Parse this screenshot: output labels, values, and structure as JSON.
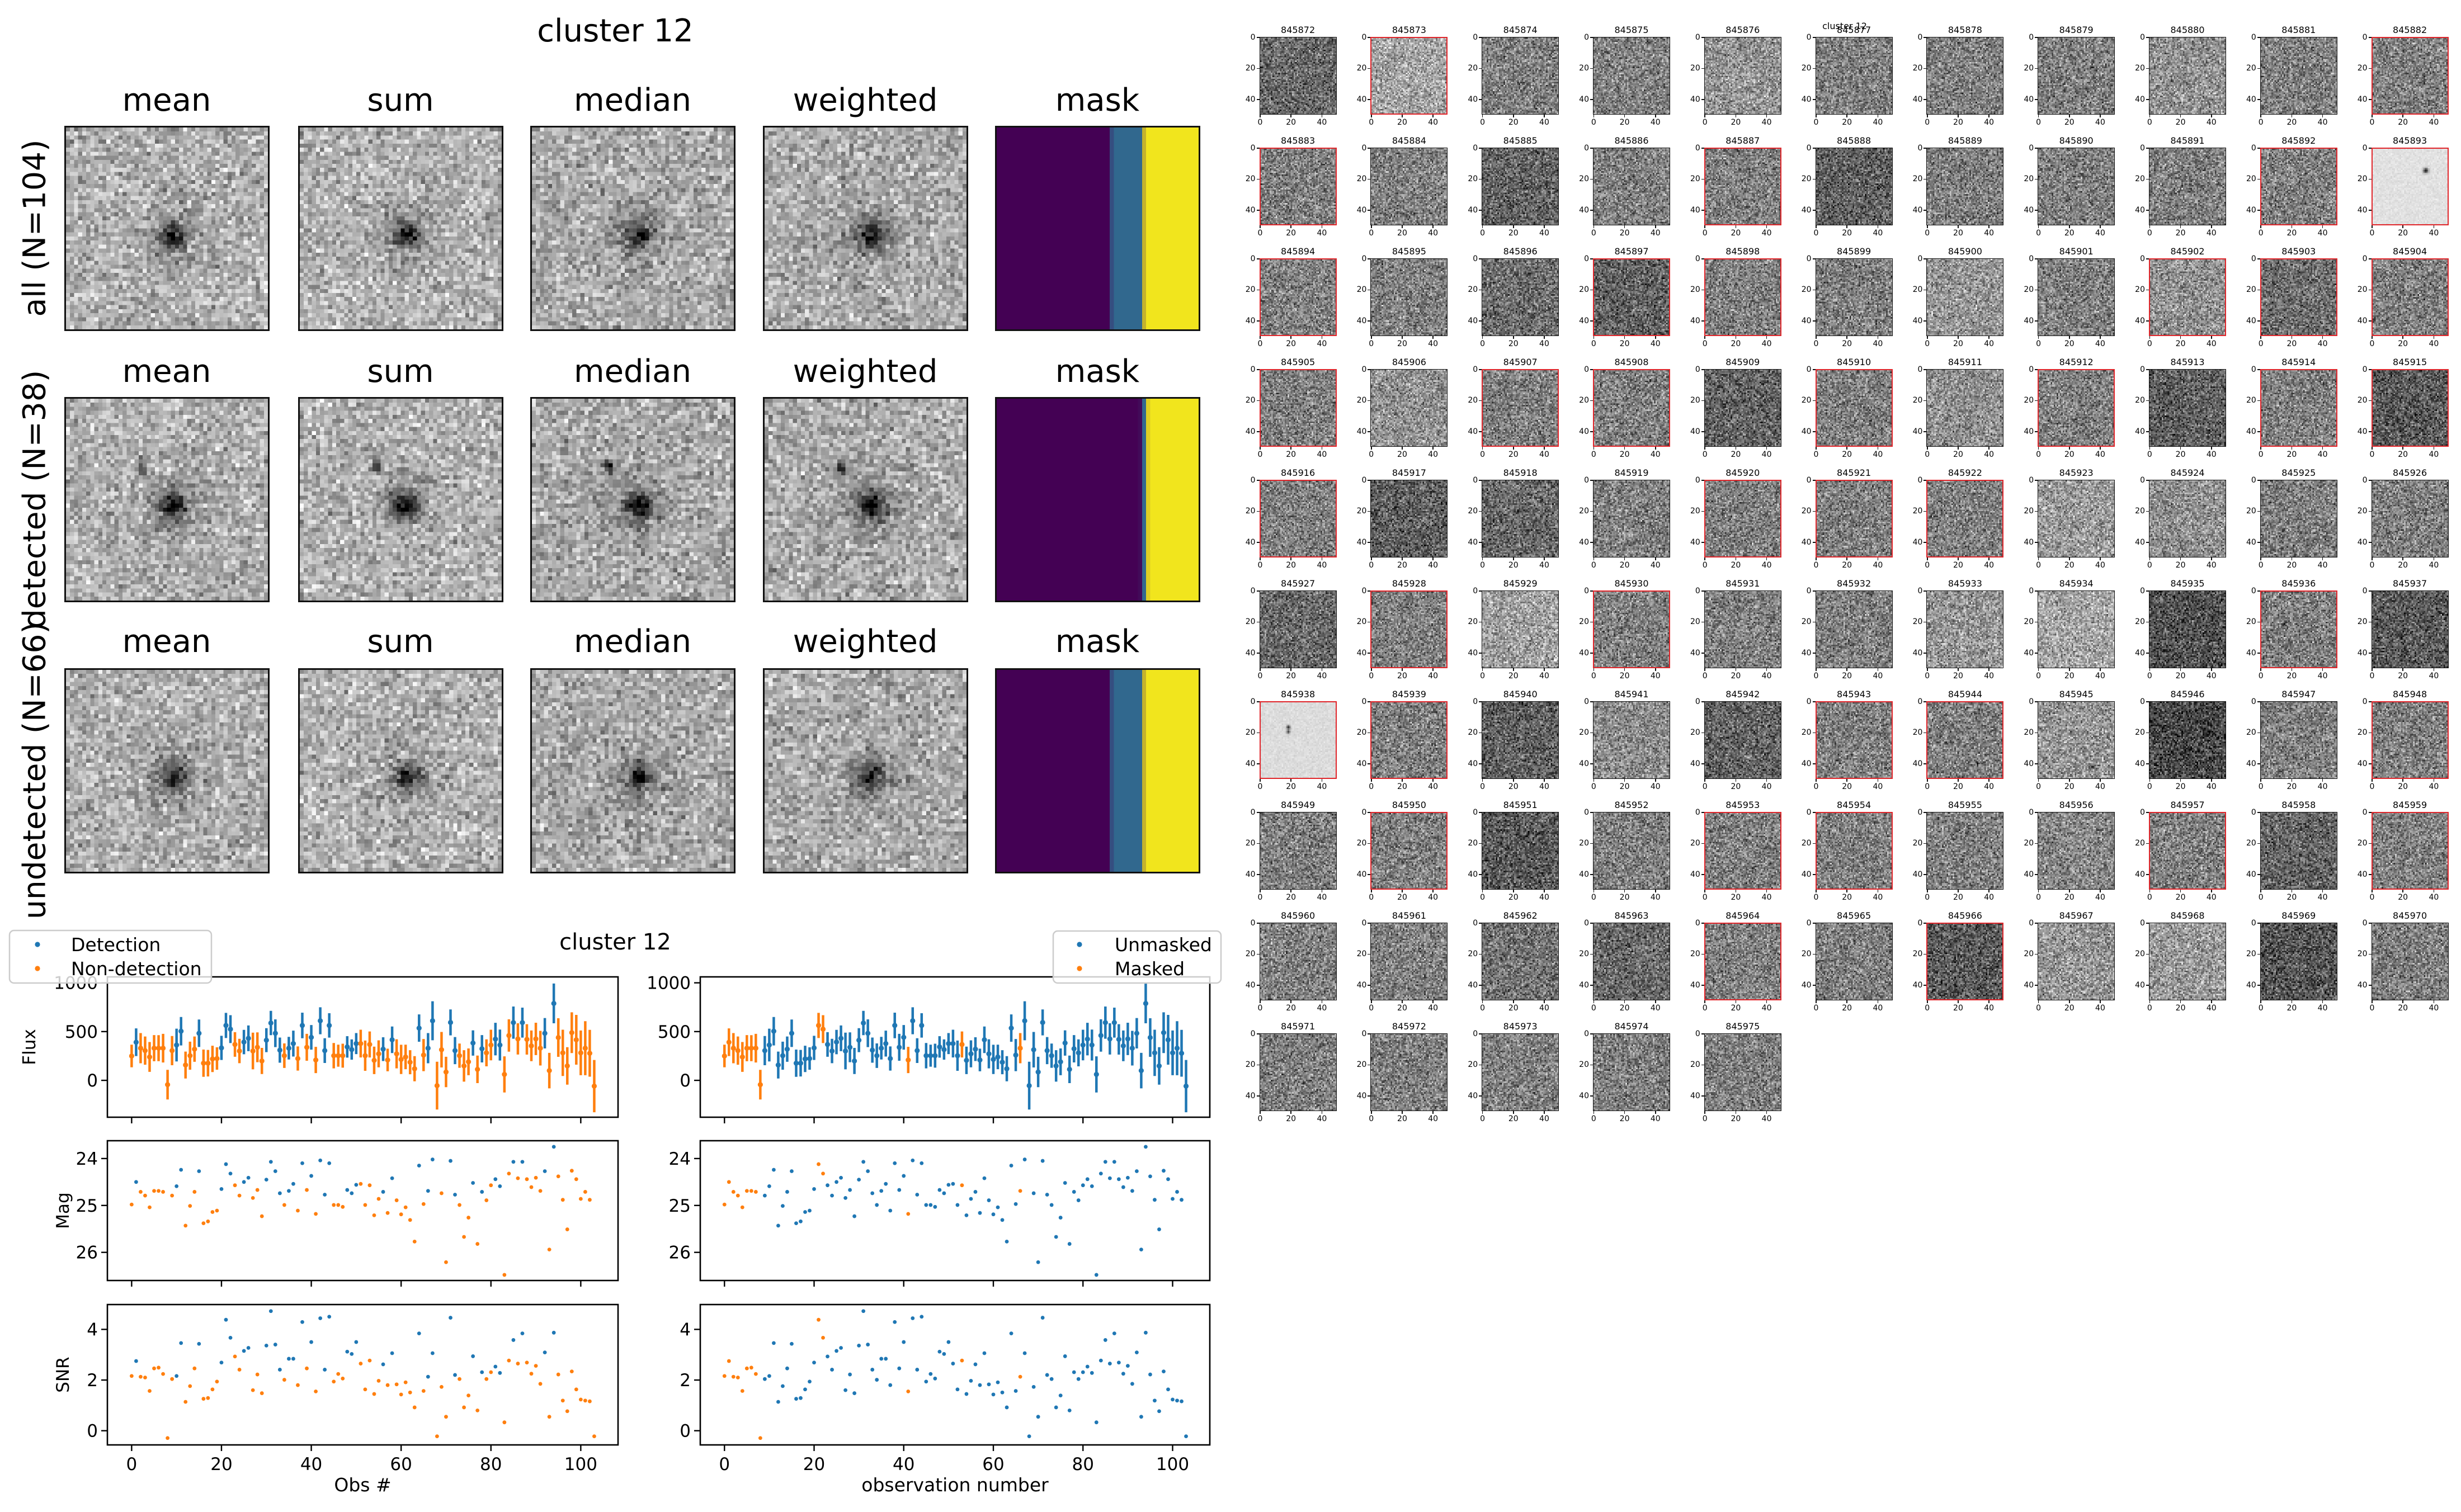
{
  "stack_figure": {
    "title": "cluster 12",
    "columns": [
      "mean",
      "sum",
      "median",
      "weighted",
      "mask"
    ],
    "rows": [
      {
        "label": "all (N=104)"
      },
      {
        "label": "detected (N=38)"
      },
      {
        "label": "undetected (N=66)"
      }
    ],
    "mask_colors": [
      "#440154",
      "#31688e",
      "#f1e51d"
    ]
  },
  "thumbnail_grid": {
    "title": "cluster 12",
    "tick_labels": [
      "0",
      "20",
      "40"
    ],
    "flag_color": "#e0262b",
    "tiles": [
      {
        "id": "845872",
        "flagged": false
      },
      {
        "id": "845873",
        "flagged": true
      },
      {
        "id": "845874",
        "flagged": false
      },
      {
        "id": "845875",
        "flagged": false
      },
      {
        "id": "845876",
        "flagged": false
      },
      {
        "id": "845877",
        "flagged": false
      },
      {
        "id": "845878",
        "flagged": false
      },
      {
        "id": "845879",
        "flagged": false
      },
      {
        "id": "845880",
        "flagged": false
      },
      {
        "id": "845881",
        "flagged": false
      },
      {
        "id": "845882",
        "flagged": true
      },
      {
        "id": "845883",
        "flagged": true
      },
      {
        "id": "845884",
        "flagged": false
      },
      {
        "id": "845885",
        "flagged": false
      },
      {
        "id": "845886",
        "flagged": false
      },
      {
        "id": "845887",
        "flagged": true
      },
      {
        "id": "845888",
        "flagged": false
      },
      {
        "id": "845889",
        "flagged": false
      },
      {
        "id": "845890",
        "flagged": false
      },
      {
        "id": "845891",
        "flagged": false
      },
      {
        "id": "845892",
        "flagged": true
      },
      {
        "id": "845893",
        "flagged": true
      },
      {
        "id": "845894",
        "flagged": true
      },
      {
        "id": "845895",
        "flagged": false
      },
      {
        "id": "845896",
        "flagged": false
      },
      {
        "id": "845897",
        "flagged": true
      },
      {
        "id": "845898",
        "flagged": true
      },
      {
        "id": "845899",
        "flagged": false
      },
      {
        "id": "845900",
        "flagged": false
      },
      {
        "id": "845901",
        "flagged": false
      },
      {
        "id": "845902",
        "flagged": true
      },
      {
        "id": "845903",
        "flagged": true
      },
      {
        "id": "845904",
        "flagged": true
      },
      {
        "id": "845905",
        "flagged": true
      },
      {
        "id": "845906",
        "flagged": false
      },
      {
        "id": "845907",
        "flagged": true
      },
      {
        "id": "845908",
        "flagged": true
      },
      {
        "id": "845909",
        "flagged": false
      },
      {
        "id": "845910",
        "flagged": true
      },
      {
        "id": "845911",
        "flagged": false
      },
      {
        "id": "845912",
        "flagged": true
      },
      {
        "id": "845913",
        "flagged": false
      },
      {
        "id": "845914",
        "flagged": true
      },
      {
        "id": "845915",
        "flagged": true
      },
      {
        "id": "845916",
        "flagged": true
      },
      {
        "id": "845917",
        "flagged": false
      },
      {
        "id": "845918",
        "flagged": false
      },
      {
        "id": "845919",
        "flagged": false
      },
      {
        "id": "845920",
        "flagged": true
      },
      {
        "id": "845921",
        "flagged": true
      },
      {
        "id": "845922",
        "flagged": true
      },
      {
        "id": "845923",
        "flagged": false
      },
      {
        "id": "845924",
        "flagged": false
      },
      {
        "id": "845925",
        "flagged": false
      },
      {
        "id": "845926",
        "flagged": false
      },
      {
        "id": "845927",
        "flagged": false
      },
      {
        "id": "845928",
        "flagged": true
      },
      {
        "id": "845929",
        "flagged": false
      },
      {
        "id": "845930",
        "flagged": true
      },
      {
        "id": "845931",
        "flagged": false
      },
      {
        "id": "845932",
        "flagged": false
      },
      {
        "id": "845933",
        "flagged": false
      },
      {
        "id": "845934",
        "flagged": false
      },
      {
        "id": "845935",
        "flagged": false
      },
      {
        "id": "845936",
        "flagged": true
      },
      {
        "id": "845937",
        "flagged": false
      },
      {
        "id": "845938",
        "flagged": true
      },
      {
        "id": "845939",
        "flagged": true
      },
      {
        "id": "845940",
        "flagged": false
      },
      {
        "id": "845941",
        "flagged": false
      },
      {
        "id": "845942",
        "flagged": false
      },
      {
        "id": "845943",
        "flagged": true
      },
      {
        "id": "845944",
        "flagged": true
      },
      {
        "id": "845945",
        "flagged": false
      },
      {
        "id": "845946",
        "flagged": false
      },
      {
        "id": "845947",
        "flagged": false
      },
      {
        "id": "845948",
        "flagged": true
      },
      {
        "id": "845949",
        "flagged": false
      },
      {
        "id": "845950",
        "flagged": true
      },
      {
        "id": "845951",
        "flagged": false
      },
      {
        "id": "845952",
        "flagged": false
      },
      {
        "id": "845953",
        "flagged": true
      },
      {
        "id": "845954",
        "flagged": true
      },
      {
        "id": "845955",
        "flagged": false
      },
      {
        "id": "845956",
        "flagged": false
      },
      {
        "id": "845957",
        "flagged": true
      },
      {
        "id": "845958",
        "flagged": false
      },
      {
        "id": "845959",
        "flagged": true
      },
      {
        "id": "845960",
        "flagged": false
      },
      {
        "id": "845961",
        "flagged": false
      },
      {
        "id": "845962",
        "flagged": false
      },
      {
        "id": "845963",
        "flagged": false
      },
      {
        "id": "845964",
        "flagged": true
      },
      {
        "id": "845965",
        "flagged": false
      },
      {
        "id": "845966",
        "flagged": true
      },
      {
        "id": "845967",
        "flagged": false
      },
      {
        "id": "845968",
        "flagged": false
      },
      {
        "id": "845969",
        "flagged": false
      },
      {
        "id": "845970",
        "flagged": false
      },
      {
        "id": "845971",
        "flagged": false
      },
      {
        "id": "845972",
        "flagged": false
      },
      {
        "id": "845973",
        "flagged": false
      },
      {
        "id": "845974",
        "flagged": false
      },
      {
        "id": "845975",
        "flagged": false
      }
    ]
  },
  "chart_data": {
    "type": "scatter",
    "title": "cluster 12",
    "xlim": [
      -5.4,
      108.3
    ],
    "xticks": [
      0,
      20,
      40,
      60,
      80,
      100
    ],
    "grid": false,
    "colors": {
      "primary": "#1f77b4",
      "secondary": "#ff7f0e"
    },
    "rows": [
      {
        "key": "flux",
        "err": "flux_err",
        "ylabel": "Flux",
        "ylim": [
          -378,
          1061
        ],
        "yticks": [
          0,
          500,
          1000
        ]
      },
      {
        "key": "mag",
        "ylabel": "Mag",
        "ylim": [
          26.6,
          23.62
        ],
        "yticks": [
          24,
          25,
          26
        ]
      },
      {
        "key": "snr",
        "ylabel": "SNR",
        "ylim": [
          -0.56,
          4.98
        ],
        "yticks": [
          0,
          2,
          4
        ]
      }
    ],
    "columns": [
      {
        "key": "detection",
        "flag": "detected",
        "blue_when": true,
        "legend": [
          "Detection",
          "Non-detection"
        ],
        "legend_loc": "upper left",
        "xlabel": "Obs #"
      },
      {
        "key": "mask",
        "flag": "masked",
        "blue_when": false,
        "legend": [
          "Unmasked",
          "Masked"
        ],
        "legend_loc": "upper right",
        "xlabel": "observation number"
      }
    ],
    "observations": {
      "obs": [
        0,
        1,
        2,
        3,
        4,
        5,
        6,
        7,
        8,
        9,
        10,
        11,
        12,
        13,
        14,
        15,
        16,
        17,
        18,
        19,
        20,
        21,
        22,
        23,
        24,
        25,
        26,
        27,
        28,
        29,
        30,
        31,
        32,
        33,
        34,
        35,
        36,
        37,
        38,
        39,
        40,
        41,
        42,
        43,
        44,
        45,
        46,
        47,
        48,
        49,
        50,
        51,
        52,
        53,
        54,
        55,
        56,
        57,
        58,
        59,
        60,
        61,
        62,
        63,
        64,
        65,
        66,
        67,
        68,
        69,
        70,
        71,
        72,
        73,
        74,
        75,
        76,
        77,
        78,
        79,
        80,
        81,
        82,
        83,
        84,
        85,
        86,
        87,
        88,
        89,
        90,
        91,
        92,
        93,
        94,
        95,
        96,
        97,
        98,
        99,
        100,
        101,
        102,
        103
      ],
      "flux": [
        250,
        391,
        330,
        305,
        240,
        330,
        330,
        330,
        -44,
        305,
        362,
        504,
        157,
        253,
        320,
        483,
        176,
        176,
        220,
        224,
        333,
        563,
        525,
        368,
        301,
        393,
        431,
        301,
        339,
        199,
        412,
        588,
        483,
        310,
        253,
        330,
        377,
        224,
        563,
        339,
        441,
        209,
        611,
        305,
        563,
        253,
        253,
        253,
        343,
        316,
        377,
        377,
        253,
        368,
        205,
        272,
        320,
        209,
        416,
        272,
        215,
        240,
        186,
        119,
        536,
        259,
        330,
        611,
        -54,
        314,
        86,
        594,
        305,
        253,
        148,
        190,
        383,
        113,
        324,
        282,
        362,
        423,
        362,
        61,
        460,
        592,
        425,
        592,
        420,
        354,
        425,
        330,
        483,
        100,
        789,
        439,
        282,
        148,
        489,
        416,
        282,
        330,
        278,
        -59
      ],
      "flux_err": [
        116,
        142,
        155,
        145,
        153,
        134,
        133,
        147,
        152,
        150,
        168,
        146,
        138,
        144,
        130,
        141,
        140,
        136,
        135,
        115,
        124,
        129,
        143,
        126,
        125,
        125,
        132,
        188,
        153,
        134,
        123,
        125,
        142,
        129,
        126,
        116,
        133,
        124,
        131,
        138,
        126,
        135,
        138,
        127,
        125,
        130,
        113,
        123,
        110,
        104,
        108,
        142,
        155,
        133,
        141,
        138,
        122,
        116,
        136,
        149,
        150,
        126,
        123,
        129,
        140,
        165,
        155,
        200,
        245,
        182,
        156,
        133,
        139,
        124,
        161,
        137,
        130,
        141,
        140,
        138,
        157,
        167,
        159,
        185,
        166,
        165,
        160,
        154,
        156,
        157,
        166,
        178,
        156,
        182,
        204,
        198,
        237,
        192,
        209,
        255,
        229,
        277,
        240,
        268
      ],
      "mag": [
        24.98,
        24.5,
        24.71,
        24.79,
        25.04,
        24.69,
        24.69,
        24.71,
        null,
        24.79,
        24.59,
        24.24,
        25.43,
        25.01,
        24.71,
        24.27,
        25.38,
        25.34,
        25.14,
        25.11,
        24.65,
        24.12,
        24.32,
        24.57,
        24.79,
        24.5,
        24.41,
        24.84,
        24.67,
        25.23,
        24.45,
        24.07,
        24.27,
        24.74,
        24.99,
        24.69,
        24.54,
        25.11,
        24.1,
        24.67,
        24.37,
        25.18,
        24.04,
        24.77,
        24.1,
        24.99,
        24.99,
        25.03,
        24.67,
        24.74,
        24.56,
        24.54,
        24.99,
        24.57,
        25.21,
        24.86,
        24.71,
        25.16,
        24.42,
        24.89,
        25.19,
        25.04,
        25.31,
        25.77,
        24.15,
        24.97,
        24.69,
        24.02,
        null,
        24.74,
        26.21,
        24.05,
        24.77,
        24.99,
        25.67,
        25.26,
        24.52,
        25.82,
        24.71,
        24.89,
        24.57,
        24.44,
        24.59,
        26.48,
        24.32,
        24.07,
        24.42,
        24.07,
        24.44,
        24.61,
        24.41,
        24.69,
        24.27,
        25.94,
        23.75,
        24.38,
        24.88,
        25.51,
        24.26,
        24.44,
        24.86,
        24.71,
        24.88,
        null
      ],
      "snr": [
        2.16,
        2.75,
        2.13,
        2.1,
        1.57,
        2.46,
        2.49,
        2.24,
        -0.29,
        2.04,
        2.16,
        3.46,
        1.14,
        1.76,
        2.46,
        3.43,
        1.26,
        1.29,
        1.63,
        1.94,
        2.69,
        4.38,
        3.67,
        2.93,
        2.41,
        3.15,
        3.27,
        1.6,
        2.22,
        1.48,
        3.36,
        4.72,
        3.4,
        2.41,
        2.01,
        2.84,
        2.84,
        1.8,
        4.29,
        2.46,
        3.5,
        1.55,
        4.44,
        2.41,
        4.5,
        1.94,
        2.24,
        2.06,
        3.12,
        3.03,
        3.5,
        2.65,
        1.63,
        2.77,
        1.45,
        1.97,
        2.62,
        1.8,
        3.06,
        1.83,
        1.43,
        1.91,
        1.51,
        0.92,
        3.84,
        1.57,
        2.13,
        3.06,
        -0.22,
        1.73,
        0.55,
        4.46,
        2.2,
        2.04,
        0.92,
        1.39,
        2.94,
        0.8,
        2.31,
        2.04,
        2.31,
        2.53,
        2.28,
        0.33,
        2.77,
        3.58,
        2.65,
        3.84,
        2.69,
        2.25,
        2.56,
        1.85,
        3.09,
        0.55,
        3.87,
        2.22,
        1.19,
        0.77,
        2.34,
        1.63,
        1.23,
        1.19,
        1.16,
        -0.22
      ],
      "detected": [
        0,
        1,
        0,
        0,
        0,
        0,
        0,
        0,
        0,
        0,
        1,
        1,
        0,
        0,
        0,
        1,
        0,
        0,
        0,
        0,
        1,
        1,
        1,
        0,
        0,
        1,
        1,
        0,
        0,
        0,
        1,
        1,
        1,
        1,
        0,
        1,
        1,
        0,
        1,
        0,
        1,
        0,
        1,
        1,
        1,
        0,
        0,
        0,
        1,
        1,
        1,
        0,
        0,
        0,
        0,
        0,
        1,
        0,
        1,
        0,
        0,
        0,
        0,
        0,
        1,
        0,
        1,
        1,
        0,
        0,
        0,
        1,
        1,
        0,
        0,
        0,
        1,
        0,
        1,
        0,
        0,
        1,
        1,
        0,
        0,
        1,
        0,
        1,
        0,
        0,
        0,
        0,
        1,
        0,
        1,
        0,
        0,
        0,
        0,
        0,
        0,
        0,
        0,
        0
      ],
      "masked": [
        1,
        1,
        1,
        1,
        1,
        1,
        1,
        1,
        1,
        0,
        0,
        0,
        0,
        0,
        0,
        0,
        0,
        0,
        0,
        0,
        0,
        1,
        1,
        0,
        0,
        0,
        0,
        0,
        0,
        0,
        0,
        0,
        0,
        0,
        0,
        0,
        0,
        0,
        0,
        0,
        0,
        1,
        0,
        0,
        0,
        0,
        0,
        0,
        0,
        0,
        0,
        0,
        0,
        1,
        0,
        0,
        0,
        0,
        0,
        0,
        0,
        0,
        0,
        0,
        0,
        0,
        1,
        0,
        0,
        0,
        0,
        0,
        0,
        0,
        0,
        0,
        0,
        0,
        0,
        0,
        0,
        0,
        0,
        0,
        0,
        0,
        0,
        0,
        0,
        0,
        0,
        0,
        0,
        0,
        0,
        0,
        0,
        0,
        0,
        0,
        0,
        0,
        0,
        0
      ]
    }
  }
}
